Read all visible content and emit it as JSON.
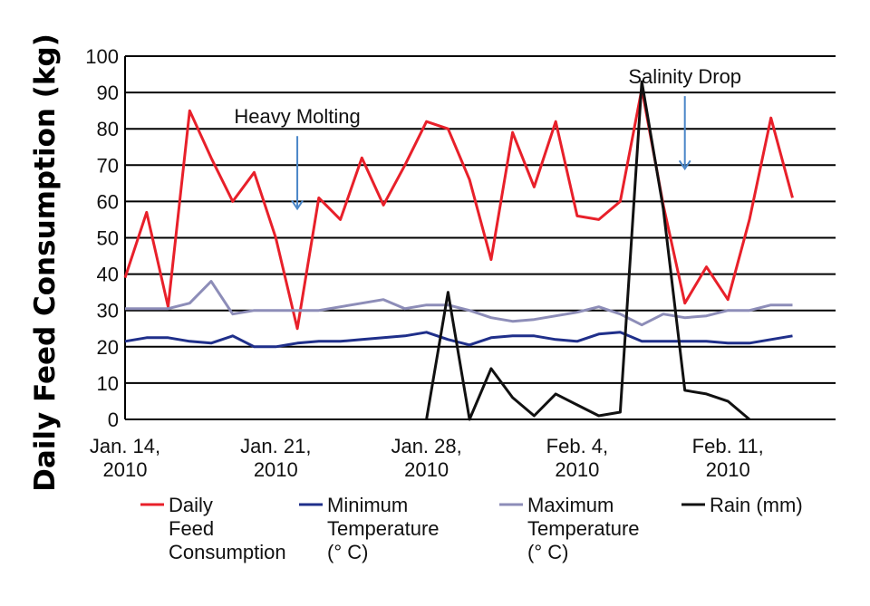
{
  "chart_data": {
    "type": "line",
    "title": "",
    "xlabel": "",
    "ylabel": "Daily Feed Consumption (kg)",
    "ylim": [
      0,
      100
    ],
    "yticks": [
      0,
      10,
      20,
      30,
      40,
      50,
      60,
      70,
      80,
      90,
      100
    ],
    "grid": "horizontal",
    "legend_position": "bottom",
    "x_start": "2010-01-14",
    "x_end": "2010-02-16",
    "x_tick_labels": [
      {
        "date": "2010-01-14",
        "line1": "Jan. 14,",
        "line2": "2010"
      },
      {
        "date": "2010-01-21",
        "line1": "Jan. 21,",
        "line2": "2010"
      },
      {
        "date": "2010-01-28",
        "line1": "Jan. 28,",
        "line2": "2010"
      },
      {
        "date": "2010-02-04",
        "line1": "Feb. 4,",
        "line2": "2010"
      },
      {
        "date": "2010-02-11",
        "line1": "Feb. 11,",
        "line2": "2010"
      }
    ],
    "series": [
      {
        "name": "Daily Feed Consumption",
        "legend_lines": [
          "Daily",
          "Feed",
          "Consumption"
        ],
        "color": "#e8202a",
        "points": [
          [
            "2010-01-14",
            39
          ],
          [
            "2010-01-15",
            57
          ],
          [
            "2010-01-16",
            31
          ],
          [
            "2010-01-17",
            85
          ],
          [
            "2010-01-18",
            72
          ],
          [
            "2010-01-19",
            60
          ],
          [
            "2010-01-20",
            68
          ],
          [
            "2010-01-21",
            50
          ],
          [
            "2010-01-22",
            25
          ],
          [
            "2010-01-23",
            61
          ],
          [
            "2010-01-24",
            55
          ],
          [
            "2010-01-25",
            72
          ],
          [
            "2010-01-26",
            59
          ],
          [
            "2010-01-27",
            70
          ],
          [
            "2010-01-28",
            82
          ],
          [
            "2010-01-29",
            80
          ],
          [
            "2010-01-30",
            66
          ],
          [
            "2010-01-31",
            44
          ],
          [
            "2010-02-01",
            79
          ],
          [
            "2010-02-02",
            64
          ],
          [
            "2010-02-03",
            82
          ],
          [
            "2010-02-04",
            56
          ],
          [
            "2010-02-05",
            55
          ],
          [
            "2010-02-06",
            60
          ],
          [
            "2010-02-07",
            91
          ],
          [
            "2010-02-08",
            59
          ],
          [
            "2010-02-09",
            32
          ],
          [
            "2010-02-10",
            42
          ],
          [
            "2010-02-11",
            33
          ],
          [
            "2010-02-12",
            55
          ],
          [
            "2010-02-13",
            83
          ],
          [
            "2010-02-14",
            61
          ]
        ]
      },
      {
        "name": "Minimum Temperature (° C)",
        "legend_lines": [
          "Minimum",
          "Temperature",
          "(° C)"
        ],
        "color": "#1f2f8a",
        "points": [
          [
            "2010-01-14",
            21.5
          ],
          [
            "2010-01-15",
            22.5
          ],
          [
            "2010-01-16",
            22.5
          ],
          [
            "2010-01-17",
            21.5
          ],
          [
            "2010-01-18",
            21
          ],
          [
            "2010-01-19",
            23
          ],
          [
            "2010-01-20",
            20
          ],
          [
            "2010-01-21",
            20
          ],
          [
            "2010-01-22",
            21
          ],
          [
            "2010-01-23",
            21.5
          ],
          [
            "2010-01-24",
            21.5
          ],
          [
            "2010-01-25",
            22
          ],
          [
            "2010-01-26",
            22.5
          ],
          [
            "2010-01-27",
            23
          ],
          [
            "2010-01-28",
            24
          ],
          [
            "2010-01-29",
            22
          ],
          [
            "2010-01-30",
            20.5
          ],
          [
            "2010-01-31",
            22.5
          ],
          [
            "2010-02-01",
            23
          ],
          [
            "2010-02-02",
            23
          ],
          [
            "2010-02-03",
            22
          ],
          [
            "2010-02-04",
            21.5
          ],
          [
            "2010-02-05",
            23.5
          ],
          [
            "2010-02-06",
            24
          ],
          [
            "2010-02-07",
            21.5
          ],
          [
            "2010-02-08",
            21.5
          ],
          [
            "2010-02-09",
            21.5
          ],
          [
            "2010-02-10",
            21.5
          ],
          [
            "2010-02-11",
            21
          ],
          [
            "2010-02-12",
            21
          ],
          [
            "2010-02-13",
            22
          ],
          [
            "2010-02-14",
            23
          ]
        ]
      },
      {
        "name": "Maximum Temperature (° C)",
        "legend_lines": [
          "Maximum",
          "Temperature",
          "(° C)"
        ],
        "color": "#8d8db8",
        "points": [
          [
            "2010-01-14",
            30.5
          ],
          [
            "2010-01-15",
            30.5
          ],
          [
            "2010-01-16",
            30.5
          ],
          [
            "2010-01-17",
            32
          ],
          [
            "2010-01-18",
            38
          ],
          [
            "2010-01-19",
            29
          ],
          [
            "2010-01-20",
            30
          ],
          [
            "2010-01-21",
            30
          ],
          [
            "2010-01-22",
            30
          ],
          [
            "2010-01-23",
            30
          ],
          [
            "2010-01-24",
            31
          ],
          [
            "2010-01-25",
            32
          ],
          [
            "2010-01-26",
            33
          ],
          [
            "2010-01-27",
            30.5
          ],
          [
            "2010-01-28",
            31.5
          ],
          [
            "2010-01-29",
            31.5
          ],
          [
            "2010-01-30",
            30
          ],
          [
            "2010-01-31",
            28
          ],
          [
            "2010-02-01",
            27
          ],
          [
            "2010-02-02",
            27.5
          ],
          [
            "2010-02-03",
            28.5
          ],
          [
            "2010-02-04",
            29.5
          ],
          [
            "2010-02-05",
            31
          ],
          [
            "2010-02-06",
            29
          ],
          [
            "2010-02-07",
            26
          ],
          [
            "2010-02-08",
            29
          ],
          [
            "2010-02-09",
            28
          ],
          [
            "2010-02-10",
            28.5
          ],
          [
            "2010-02-11",
            30
          ],
          [
            "2010-02-12",
            30
          ],
          [
            "2010-02-13",
            31.5
          ],
          [
            "2010-02-14",
            31.5
          ]
        ]
      },
      {
        "name": "Rain (mm)",
        "legend_lines": [
          "Rain (mm)"
        ],
        "color": "#111111",
        "points": [
          [
            "2010-01-28",
            0
          ],
          [
            "2010-01-29",
            35
          ],
          [
            "2010-01-30",
            0
          ],
          [
            "2010-01-31",
            14
          ],
          [
            "2010-02-01",
            6
          ],
          [
            "2010-02-02",
            1
          ],
          [
            "2010-02-03",
            7
          ],
          [
            "2010-02-04",
            4
          ],
          [
            "2010-02-05",
            1
          ],
          [
            "2010-02-06",
            2
          ],
          [
            "2010-02-07",
            93
          ],
          [
            "2010-02-08",
            58
          ],
          [
            "2010-02-09",
            8
          ],
          [
            "2010-02-10",
            7
          ],
          [
            "2010-02-11",
            5
          ],
          [
            "2010-02-12",
            0
          ]
        ]
      }
    ],
    "annotations": [
      {
        "text": "Heavy Molting",
        "date": "2010-01-22",
        "arrow_top": 78,
        "arrow_bottom": 58,
        "arrow_color": "#4a86c8"
      },
      {
        "text": "Salinity Drop",
        "date": "2010-02-09",
        "arrow_top": 89,
        "arrow_bottom": 69,
        "arrow_color": "#4a86c8"
      }
    ]
  }
}
